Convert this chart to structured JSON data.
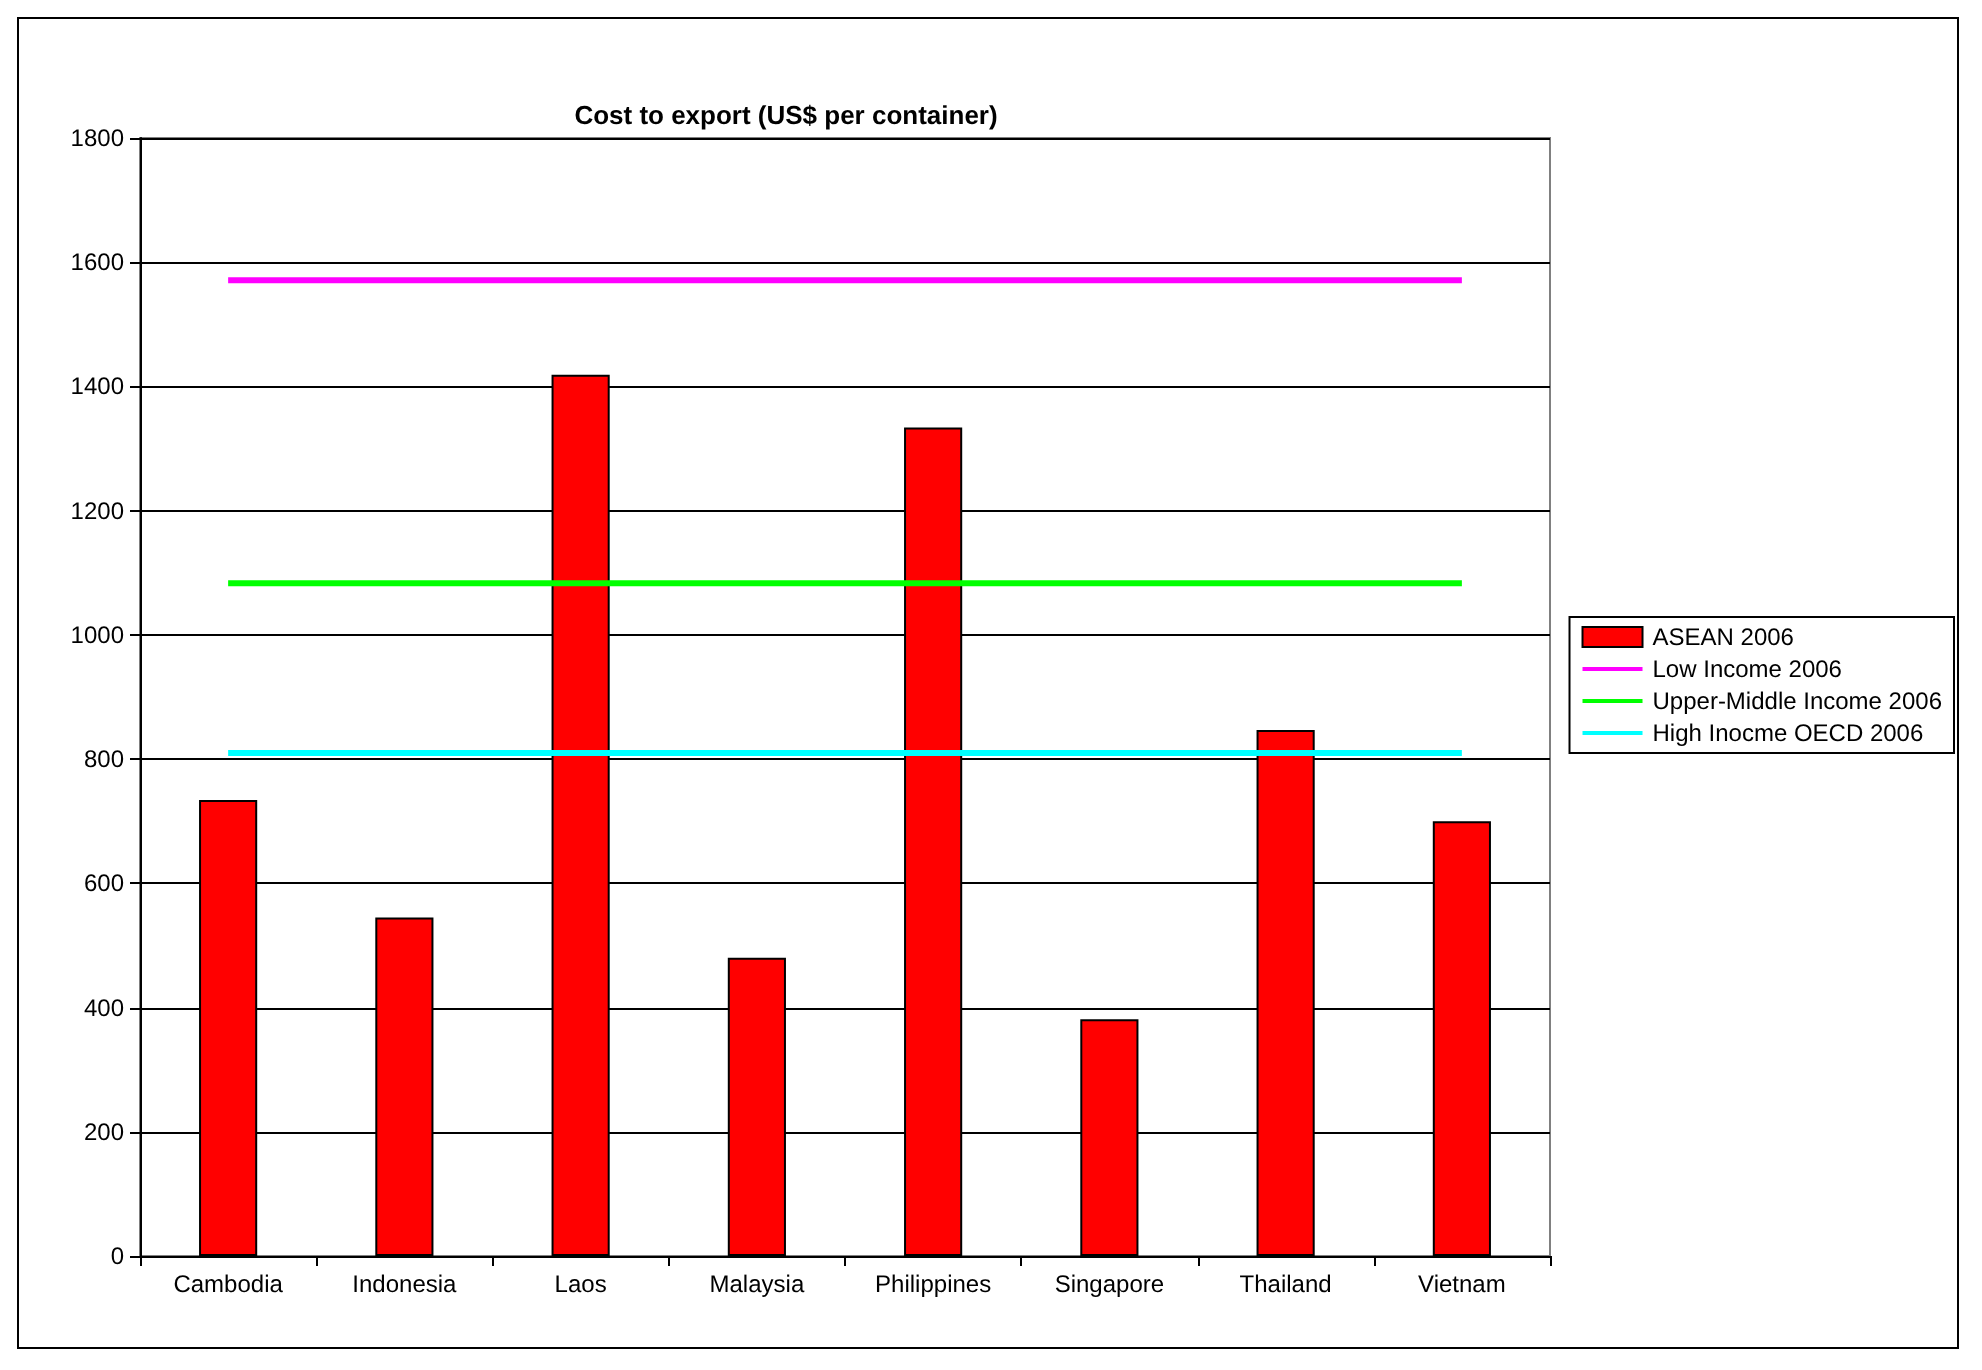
{
  "chart_data": {
    "type": "bar",
    "title": "Cost to export (US$ per container)",
    "categories": [
      "Cambodia",
      "Indonesia",
      "Laos",
      "Malaysia",
      "Philippines",
      "Singapore",
      "Thailand",
      "Vietnam"
    ],
    "series": [
      {
        "name": "ASEAN 2006",
        "color": "#ff0000",
        "values": [
          734,
          545,
          1419,
          480,
          1334,
          381,
          847,
          700
        ]
      },
      {
        "name": "Low Income 2006",
        "type": "line",
        "color": "#ff00ff",
        "values": [
          1571,
          1571,
          1571,
          1571,
          1571,
          1571,
          1571,
          1571
        ]
      },
      {
        "name": "Upper-Middle Income 2006",
        "type": "line",
        "color": "#00ff00",
        "values": [
          1083,
          1083,
          1083,
          1083,
          1083,
          1083,
          1083,
          1083
        ]
      },
      {
        "name": "High Inocme OECD 2006",
        "type": "line",
        "color": "#00ffff",
        "values": [
          810,
          810,
          810,
          810,
          810,
          810,
          810,
          810
        ]
      }
    ],
    "ylim": [
      0,
      1800
    ],
    "yticks": [
      0,
      200,
      400,
      600,
      800,
      1000,
      1200,
      1400,
      1600,
      1800
    ],
    "grid": "y",
    "legend": "right",
    "marker": "none",
    "line_style": "solid"
  }
}
